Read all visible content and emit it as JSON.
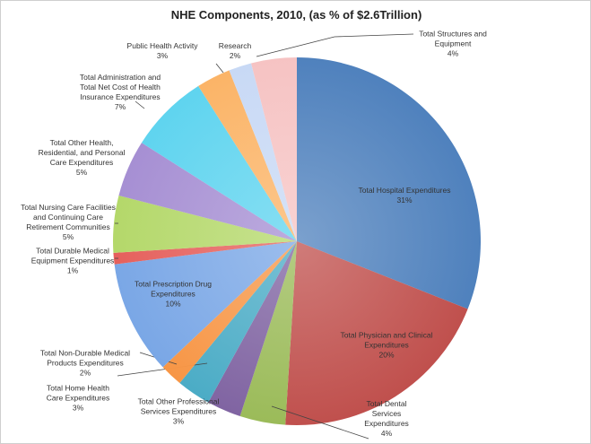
{
  "chart_data": {
    "type": "pie",
    "title": "NHE Components, 2010, (as % of $2.6Trillion)",
    "slices": [
      {
        "label": "Total Hospital Expenditures",
        "value": 31,
        "display": "31%",
        "color": "#4f81bd"
      },
      {
        "label": "Total Physician and Clinical Expenditures",
        "value": 20,
        "display": "20%",
        "color": "#c0504d"
      },
      {
        "label": "Total Dental Services Expenditures",
        "value": 4,
        "display": "4%",
        "color": "#9bbb59"
      },
      {
        "label": "Total Other Professional Services Expenditures",
        "value": 3,
        "display": "3%",
        "color": "#8064a2"
      },
      {
        "label": "Total Home Health Care Expenditures",
        "value": 3,
        "display": "3%",
        "color": "#4bacc6"
      },
      {
        "label": "Total Non-Durable Medical Products Expenditures",
        "value": 2,
        "display": "2%",
        "color": "#f79646"
      },
      {
        "label": "Total Prescription Drug Expenditures",
        "value": 10,
        "display": "10%",
        "color": "#7aa7e6"
      },
      {
        "label": "Total Durable Medical Equipment Expenditures",
        "value": 1,
        "display": "1%",
        "color": "#e5605c"
      },
      {
        "label": "Total Nursing Care Facilities and Continuing Care Retirement Communities",
        "value": 5,
        "display": "5%",
        "color": "#b4d86a"
      },
      {
        "label": "Total Other Health, Residential, and Personal Care Expenditures",
        "value": 5,
        "display": "5%",
        "color": "#a68fd3"
      },
      {
        "label": "Total Administration and Total Net Cost of Health Insurance Expenditures",
        "value": 7,
        "display": "7%",
        "color": "#5fd4ef"
      },
      {
        "label": "Public Health Activity",
        "value": 3,
        "display": "3%",
        "color": "#fbb467"
      },
      {
        "label": "Research",
        "value": 2,
        "display": "2%",
        "color": "#c8d9f5"
      },
      {
        "label": "Total Structures and Equipment",
        "value": 4,
        "display": "4%",
        "color": "#f6c3c3"
      }
    ],
    "legend": "none",
    "label_style": "data labels with leader lines"
  }
}
